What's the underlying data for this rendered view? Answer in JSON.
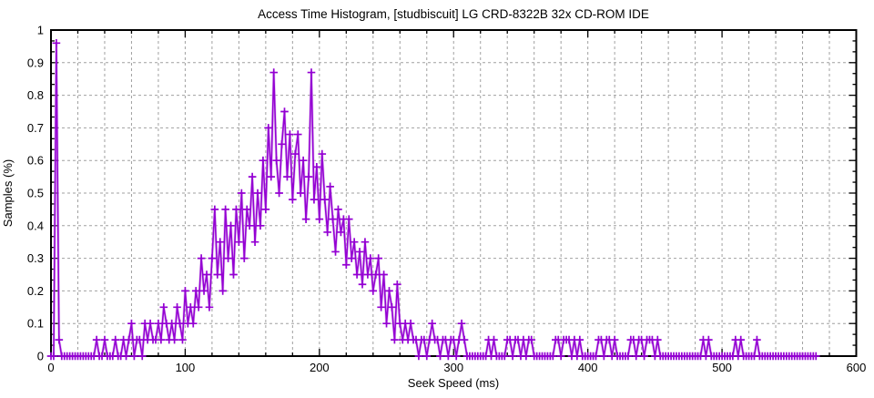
{
  "window": {
    "background": "#ffffff"
  },
  "chart_data": {
    "type": "line",
    "title": "Access Time Histogram, [studbiscuit] LG CRD-8322B 32x CD-ROM IDE",
    "xlabel": "Seek Speed (ms)",
    "ylabel": "Samples (%)",
    "xlim": [
      0,
      600
    ],
    "ylim": [
      0,
      1
    ],
    "xticks": [
      0,
      100,
      200,
      300,
      400,
      500,
      600
    ],
    "yticks": [
      0,
      0.1,
      0.2,
      0.3,
      0.4,
      0.5,
      0.6,
      0.7,
      0.8,
      0.9,
      1
    ],
    "x_minor_step": 20,
    "y_minor_divisions": 3,
    "grid": {
      "vertical_spacing_ms": 20,
      "horizontal_spacing": 0.1,
      "style": "dashed",
      "color": "#a0a0a0"
    },
    "legend": "none",
    "marker": "plus",
    "line_color": "#9400d3",
    "halo_color": "#cd8fe8",
    "border_color": "#000000",
    "series_name": "seek-time-samples",
    "x_start": 0,
    "x_step": 2,
    "y_values": [
      0,
      0,
      0.96,
      0.05,
      0,
      0,
      0,
      0,
      0,
      0,
      0,
      0,
      0,
      0,
      0,
      0,
      0,
      0.05,
      0,
      0,
      0.05,
      0,
      0,
      0,
      0.05,
      0,
      0,
      0.05,
      0,
      0.05,
      0.1,
      0,
      0.05,
      0.05,
      0,
      0.1,
      0.05,
      0.1,
      0.05,
      0.05,
      0.1,
      0.05,
      0.15,
      0.1,
      0.05,
      0.1,
      0.05,
      0.15,
      0.1,
      0.05,
      0.2,
      0.1,
      0.15,
      0.1,
      0.2,
      0.15,
      0.3,
      0.2,
      0.25,
      0.15,
      0.3,
      0.45,
      0.25,
      0.35,
      0.2,
      0.45,
      0.3,
      0.4,
      0.25,
      0.45,
      0.35,
      0.5,
      0.3,
      0.45,
      0.4,
      0.55,
      0.35,
      0.5,
      0.4,
      0.6,
      0.45,
      0.7,
      0.55,
      0.87,
      0.6,
      0.5,
      0.65,
      0.75,
      0.55,
      0.68,
      0.48,
      0.62,
      0.68,
      0.5,
      0.6,
      0.42,
      0.55,
      0.87,
      0.48,
      0.58,
      0.42,
      0.62,
      0.48,
      0.38,
      0.52,
      0.42,
      0.32,
      0.45,
      0.38,
      0.42,
      0.28,
      0.42,
      0.3,
      0.35,
      0.25,
      0.32,
      0.22,
      0.35,
      0.25,
      0.3,
      0.2,
      0.25,
      0.3,
      0.15,
      0.25,
      0.1,
      0.2,
      0.15,
      0.05,
      0.22,
      0.1,
      0.05,
      0.1,
      0.05,
      0.1,
      0.05,
      0.05,
      0,
      0.05,
      0.05,
      0,
      0.05,
      0.1,
      0.05,
      0.05,
      0,
      0.05,
      0.05,
      0,
      0.05,
      0.05,
      0,
      0.05,
      0.1,
      0.05,
      0,
      0,
      0,
      0,
      0,
      0,
      0,
      0,
      0.05,
      0,
      0.05,
      0,
      0,
      0,
      0,
      0.05,
      0.05,
      0,
      0.05,
      0.05,
      0,
      0.05,
      0,
      0.05,
      0.05,
      0,
      0,
      0,
      0,
      0,
      0,
      0,
      0,
      0.05,
      0.05,
      0,
      0.05,
      0.05,
      0.05,
      0,
      0.05,
      0,
      0.05,
      0,
      0,
      0,
      0,
      0,
      0,
      0.05,
      0.05,
      0,
      0.05,
      0.05,
      0,
      0.05,
      0,
      0,
      0,
      0,
      0,
      0.05,
      0.05,
      0,
      0.05,
      0.05,
      0,
      0.05,
      0.05,
      0.05,
      0,
      0.05,
      0,
      0,
      0,
      0,
      0,
      0,
      0,
      0,
      0,
      0,
      0,
      0,
      0,
      0,
      0,
      0,
      0.05,
      0,
      0.05,
      0,
      0,
      0,
      0,
      0,
      0,
      0,
      0,
      0,
      0.05,
      0,
      0.05,
      0,
      0,
      0,
      0,
      0,
      0.05,
      0,
      0,
      0,
      0,
      0,
      0,
      0,
      0,
      0,
      0,
      0,
      0,
      0,
      0,
      0,
      0,
      0,
      0,
      0,
      0,
      0,
      0
    ]
  }
}
